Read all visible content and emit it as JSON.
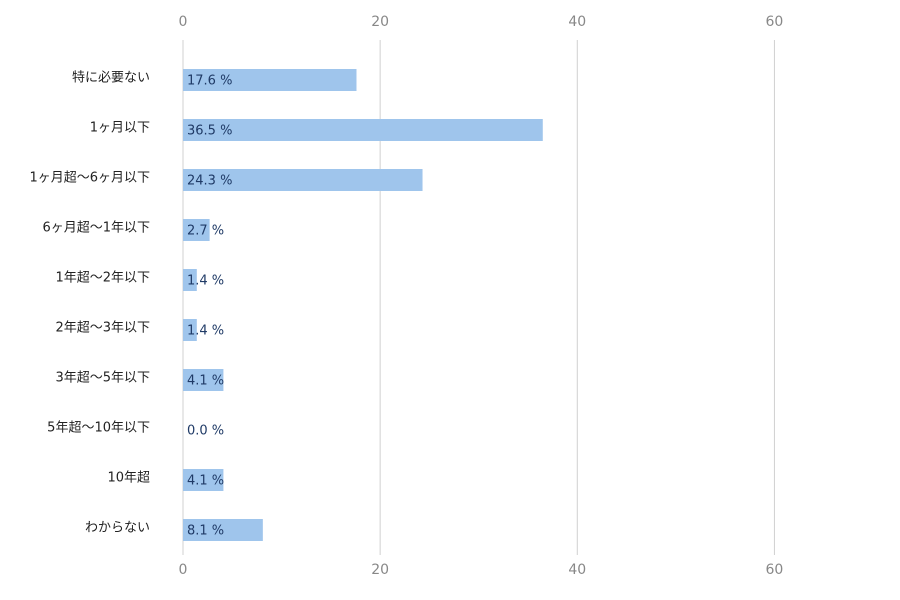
{
  "chart_data": {
    "type": "bar",
    "orientation": "horizontal",
    "categories": [
      "特に必要ない",
      "1ヶ月以下",
      "1ヶ月超～6ヶ月以下",
      "6ヶ月超～1年以下",
      "1年超～2年以下",
      "2年超～3年以下",
      "3年超～5年以下",
      "5年超～10年以下",
      "10年超",
      "わからない"
    ],
    "values": [
      17.6,
      36.5,
      24.3,
      2.7,
      1.4,
      1.4,
      4.1,
      0.0,
      4.1,
      8.1
    ],
    "value_labels": [
      "17.6 %",
      "36.5 %",
      "24.3 %",
      "2.7 %",
      "1.4 %",
      "1.4 %",
      "4.1 %",
      "0.0 %",
      "4.1 %",
      "8.1 %"
    ],
    "color": "#9fc5ec",
    "xlim": [
      0,
      70
    ],
    "xticks": [
      0,
      20,
      40,
      60
    ],
    "grid": true
  }
}
